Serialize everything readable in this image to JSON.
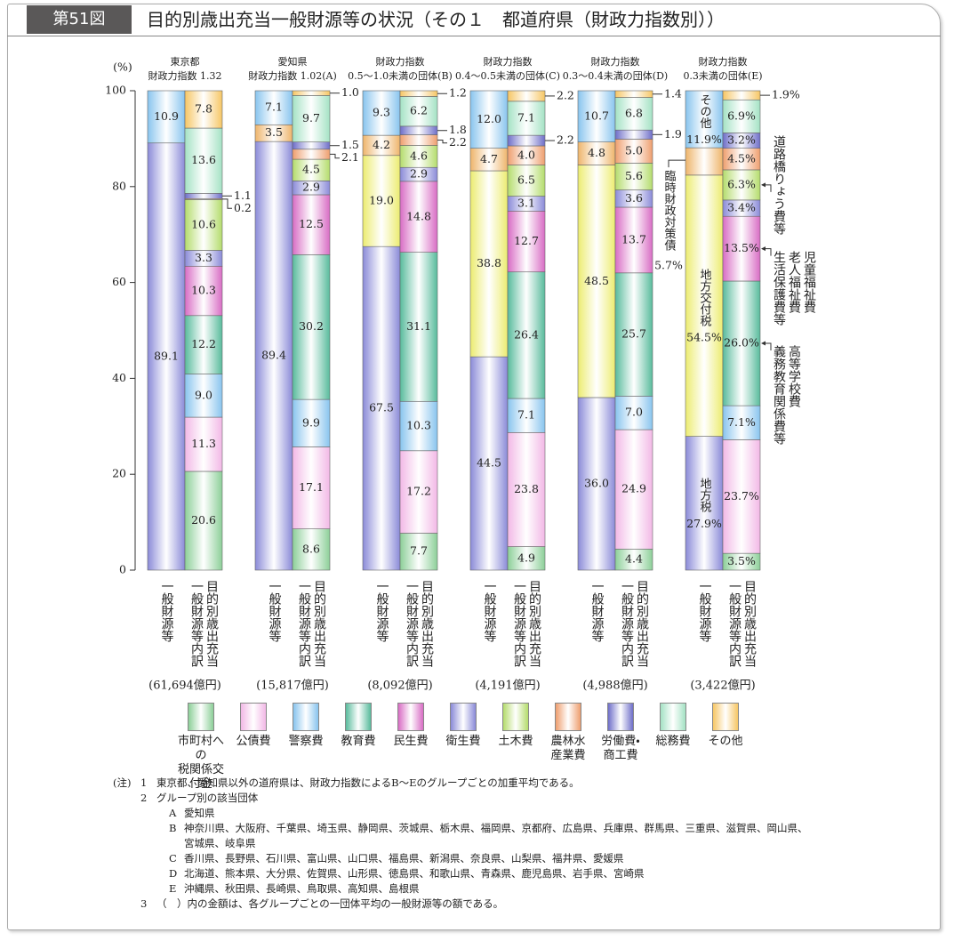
{
  "header": {
    "figure_no": "第51図",
    "title": "目的別歳出充当一般財源等の状況（その１　都道府県（財政力指数別））"
  },
  "chart_data": {
    "type": "stacked_bar",
    "y_unit": "(%)",
    "ylim": [
      0,
      100
    ],
    "yticks": [
      0,
      20,
      40,
      60,
      80,
      100
    ],
    "groups": [
      {
        "name": "東京都",
        "sub": "財政力指数 1.32",
        "amount": "(61,694億円)"
      },
      {
        "name": "愛知県",
        "sub": "財政力指数 1.02(A)",
        "amount": "(15,817億円)"
      },
      {
        "name": "財政力指数",
        "sub": "0.5～1.0未満の団体(B)",
        "amount": "(8,092億円)"
      },
      {
        "name": "財政力指数",
        "sub": "0.4～0.5未満の団体(C)",
        "amount": "(4,191億円)"
      },
      {
        "name": "財政力指数",
        "sub": "0.3～0.4未満の団体(D)",
        "amount": "(4,988億円)"
      },
      {
        "name": "財政力指数",
        "sub": "0.3未満の団体(E)",
        "amount": "(3,422億円)"
      }
    ],
    "bar_labels": [
      "一般財源等",
      "目的別歳出充当一般財源等内訳"
    ],
    "general_series": [
      {
        "name": "地方税",
        "color": "#8a8ad8",
        "values": [
          89.1,
          89.4,
          67.5,
          44.5,
          36,
          27.9
        ],
        "value_labels": [
          "89.1",
          "89.4",
          "67.5",
          "44.5",
          "36.0",
          "27.9%"
        ]
      },
      {
        "name": "地方交付税",
        "color": "#ecec70",
        "values": [
          null,
          null,
          19,
          38.8,
          48.5,
          54.5
        ],
        "value_labels": [
          null,
          null,
          "19.0",
          "38.8",
          "48.5",
          "54.5%"
        ]
      },
      {
        "name": "臨時財政対策債",
        "color": "#eeb46a",
        "values": [
          null,
          3.5,
          4.2,
          4.7,
          4.8,
          5.7
        ],
        "value_labels": [
          null,
          "3.5",
          "4.2",
          "4.7",
          "4.8",
          "5.7%"
        ]
      },
      {
        "name": "その他",
        "color": "#88c4ee",
        "values": [
          10.9,
          7.1,
          9.3,
          12,
          10.7,
          11.9
        ],
        "value_labels": [
          "10.9",
          "7.1",
          "9.3",
          "12.0",
          "10.7",
          "11.9%"
        ]
      }
    ],
    "breakdown_series": [
      {
        "name": "市町村への\n税関係交付金",
        "color": "#8ccf98",
        "values": [
          20.6,
          8.6,
          7.7,
          4.9,
          4.4,
          3.5
        ],
        "value_labels": [
          "20.6",
          "8.6",
          "7.7",
          "4.9",
          "4.4",
          "3.5%"
        ]
      },
      {
        "name": "公債費",
        "color": "#f2b8e6",
        "values": [
          11.3,
          17.1,
          17.2,
          23.8,
          24.9,
          23.7
        ],
        "value_labels": [
          "11.3",
          "17.1",
          "17.2",
          "23.8",
          "24.9",
          "23.7%"
        ]
      },
      {
        "name": "警察費",
        "color": "#88c4ee",
        "values": [
          9,
          9.9,
          10.3,
          7.1,
          7,
          7.1
        ],
        "value_labels": [
          "9.0",
          "9.9",
          "10.3",
          "7.1",
          "7.0",
          "7.1%"
        ]
      },
      {
        "name": "教育費",
        "color": "#58bb9c",
        "values": [
          12.2,
          30.2,
          31.1,
          26.4,
          25.7,
          26
        ],
        "value_labels": [
          "12.2",
          "30.2",
          "31.1",
          "26.4",
          "25.7",
          "26.0%"
        ],
        "note": "高等学校費\n義務教育関係費等"
      },
      {
        "name": "民生費",
        "color": "#d86cc4",
        "values": [
          10.3,
          12.5,
          14.8,
          12.7,
          13.7,
          13.5
        ],
        "value_labels": [
          "10.3",
          "12.5",
          "14.8",
          "12.7",
          "13.7",
          "13.5%"
        ],
        "note": "児童福祉費\n老人福祉費\n生活保護費等"
      },
      {
        "name": "衛生費",
        "color": "#8a8ad8",
        "values": [
          3.3,
          2.9,
          2.9,
          3.1,
          3.6,
          3.4
        ],
        "value_labels": [
          "3.3",
          "2.9",
          "2.9",
          "3.1",
          "3.6",
          "3.4%"
        ]
      },
      {
        "name": "土木費",
        "color": "#b4dc6c",
        "values": [
          10.6,
          4.5,
          4.6,
          6.5,
          5.6,
          6.3
        ],
        "value_labels": [
          "10.6",
          "4.5",
          "4.6",
          "6.5",
          "5.6",
          "6.3%"
        ],
        "note": "道路橋りょう費等"
      },
      {
        "name": "農林水\n産業費",
        "color": "#ee9e6e",
        "values": [
          0.2,
          2.1,
          2.2,
          4,
          5,
          4.5
        ],
        "value_labels": [
          "0.2",
          "2.1",
          "2.2",
          "4.0",
          "5.0",
          "4.5%"
        ]
      },
      {
        "name": "労働費・\n商工費",
        "color": "#6e6ec8",
        "values": [
          1.1,
          1.5,
          1.8,
          2.2,
          1.9,
          3.2
        ],
        "value_labels": [
          "1.1",
          "1.5",
          "1.8",
          "2.2",
          "1.9",
          "3.2%"
        ]
      },
      {
        "name": "総務費",
        "color": "#a4e2c4",
        "values": [
          13.6,
          9.7,
          6.2,
          7.1,
          6.8,
          6.9
        ],
        "value_labels": [
          "13.6",
          "9.7",
          "6.2",
          "7.1",
          "6.8",
          "6.9%"
        ]
      },
      {
        "name": "その他",
        "color": "#f6c664",
        "values": [
          7.8,
          1,
          1.2,
          2.2,
          1.4,
          1.9
        ],
        "value_labels": [
          "7.8",
          "1.0",
          "1.2",
          "2.2",
          "1.4",
          "1.9%"
        ]
      }
    ]
  },
  "notes": {
    "label": "(注)",
    "items": [
      {
        "num": "1",
        "text": "東京都、愛知県以外の道府県は、財政力指数によるB～Eのグループごとの加重平均である。"
      },
      {
        "num": "2",
        "text": "グループ別の該当団体",
        "groups": [
          {
            "key": "A",
            "text": "愛知県"
          },
          {
            "key": "B",
            "text": "神奈川県、大阪府、千葉県、埼玉県、静岡県、茨城県、栃木県、福岡県、京都府、広島県、兵庫県、群馬県、三重県、滋賀県、岡山県、宮城県、岐阜県"
          },
          {
            "key": "C",
            "text": "香川県、長野県、石川県、富山県、山口県、福島県、新潟県、奈良県、山梨県、福井県、愛媛県"
          },
          {
            "key": "D",
            "text": "北海道、熊本県、大分県、佐賀県、山形県、徳島県、和歌山県、青森県、鹿児島県、岩手県、宮崎県"
          },
          {
            "key": "E",
            "text": "沖縄県、秋田県、長崎県、鳥取県、高知県、島根県"
          }
        ]
      },
      {
        "num": "3",
        "text": "（　）内の金額は、各グループごとの一団体平均の一般財源等の額である。"
      }
    ]
  }
}
